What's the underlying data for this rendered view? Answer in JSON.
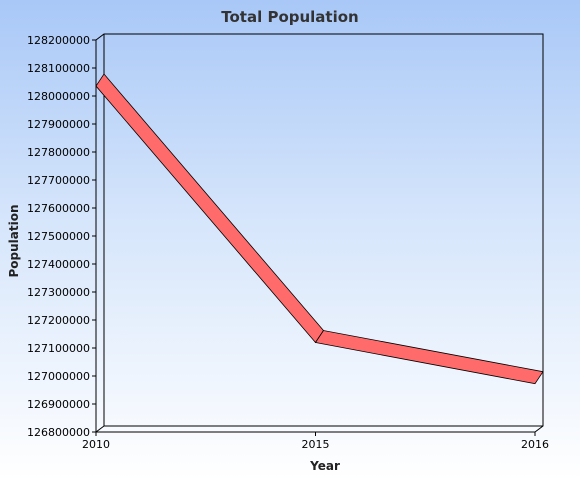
{
  "chart_data": {
    "type": "line",
    "title": "Total Population",
    "xlabel": "Year",
    "ylabel": "Population",
    "categories": [
      "2010",
      "2015",
      "2016"
    ],
    "series": [
      {
        "values": [
          128057000,
          127141000,
          126994000
        ],
        "color": "#ff6b6b"
      }
    ],
    "yticks": [
      "128200000",
      "128100000",
      "128000000",
      "127900000",
      "127800000",
      "127700000",
      "127600000",
      "127500000",
      "127400000",
      "127300000",
      "127200000",
      "127100000",
      "127000000",
      "126900000",
      "126800000"
    ],
    "ylim": [
      126800000,
      128200000
    ],
    "grid": false,
    "legend": "none",
    "background": "#a9c8f7"
  }
}
